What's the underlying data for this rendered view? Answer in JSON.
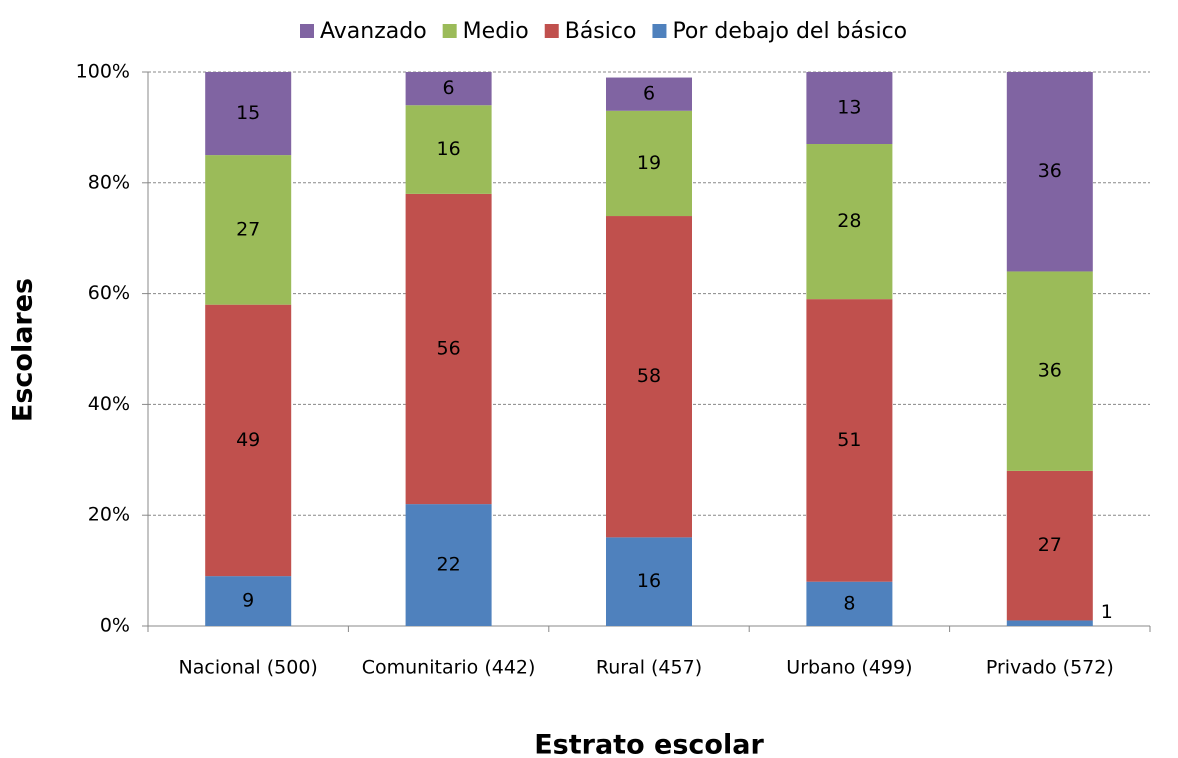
{
  "chart_data": {
    "type": "stacked-bar",
    "x_label": "Estrato escolar",
    "y_label": "Escolares",
    "categories": [
      "Nacional (500)",
      "Comunitario (442)",
      "Rural (457)",
      "Urbano (499)",
      "Privado (572)"
    ],
    "series": [
      {
        "name": "Por debajo del básico",
        "color": "#4f81bd",
        "values": [
          9,
          22,
          16,
          8,
          1
        ]
      },
      {
        "name": "Básico",
        "color": "#c0504d",
        "values": [
          49,
          56,
          58,
          51,
          27
        ]
      },
      {
        "name": "Medio",
        "color": "#9bbb59",
        "values": [
          27,
          16,
          19,
          28,
          36
        ]
      },
      {
        "name": "Avanzado",
        "color": "#8064a2",
        "values": [
          15,
          6,
          6,
          13,
          36
        ]
      }
    ],
    "ylim": [
      0,
      100
    ],
    "yticks": [
      {
        "value": 0,
        "label": "0%"
      },
      {
        "value": 20,
        "label": "20%"
      },
      {
        "value": 40,
        "label": "40%"
      },
      {
        "value": 60,
        "label": "60%"
      },
      {
        "value": 80,
        "label": "80%"
      },
      {
        "value": 100,
        "label": "100%"
      }
    ],
    "grid": true,
    "legend": "top"
  }
}
